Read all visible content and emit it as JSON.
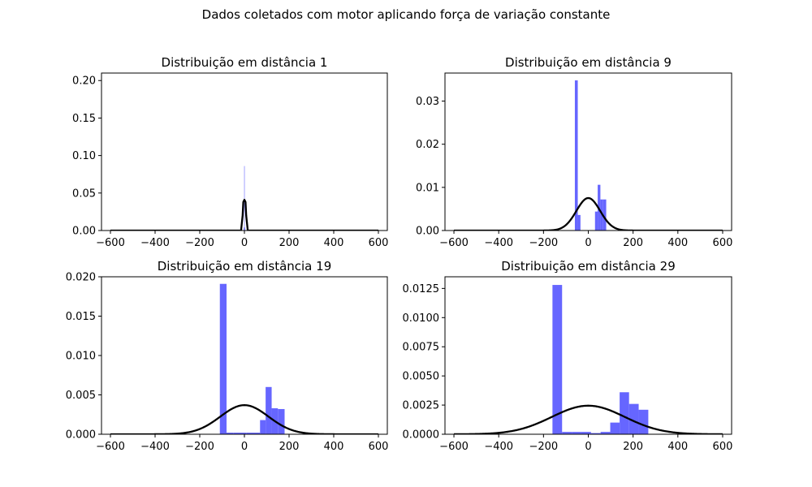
{
  "figure": {
    "suptitle": "Dados coletados com motor aplicando força de variação constante",
    "bar_color": "#6666ff",
    "curve_color": "#000000"
  },
  "chart_data": [
    {
      "type": "histogram",
      "title": "Distribuição em distância 1",
      "xlabel": "",
      "ylabel": "",
      "xlim": [
        -640,
        640
      ],
      "ylim": [
        0,
        0.21
      ],
      "xticks": [
        -600,
        -400,
        -200,
        0,
        200,
        400,
        600
      ],
      "xtick_labels": [
        "−600",
        "−400",
        "−200",
        "0",
        "200",
        "400",
        "600"
      ],
      "yticks": [
        0,
        0.05,
        0.1,
        0.15,
        0.2
      ],
      "ytick_labels": [
        "0.00",
        "0.05",
        "0.10",
        "0.15",
        "0.20"
      ],
      "bins": [
        {
          "x0": -3,
          "x1": -1,
          "y": 0.004
        },
        {
          "x0": -1,
          "x1": 1,
          "y": 0.086
        },
        {
          "x0": 1,
          "x1": 3,
          "y": 0.004
        }
      ],
      "normal_curve": {
        "x_min": -600,
        "x_max": 600,
        "mu": 0,
        "sigma": 10,
        "explicit_points": [
          [
            -600,
            0
          ],
          [
            -15,
            0
          ],
          [
            -8,
            0.02
          ],
          [
            -5,
            0.038
          ],
          [
            0,
            0.041
          ],
          [
            5,
            0.038
          ],
          [
            8,
            0.02
          ],
          [
            15,
            0
          ],
          [
            600,
            0
          ]
        ]
      },
      "grid": false
    },
    {
      "type": "histogram",
      "title": "Distribuição em distância 9",
      "xlabel": "",
      "ylabel": "",
      "xlim": [
        -640,
        640
      ],
      "ylim": [
        0,
        0.0365
      ],
      "xticks": [
        -600,
        -400,
        -200,
        0,
        200,
        400,
        600
      ],
      "xtick_labels": [
        "−600",
        "−400",
        "−200",
        "0",
        "200",
        "400",
        "600"
      ],
      "yticks": [
        0,
        0.01,
        0.02,
        0.03
      ],
      "ytick_labels": [
        "0.00",
        "0.01",
        "0.02",
        "0.03"
      ],
      "bins": [
        {
          "x0": -60,
          "x1": -47,
          "y": 0.0348
        },
        {
          "x0": -47,
          "x1": -35,
          "y": 0.0036
        },
        {
          "x0": 30,
          "x1": 42,
          "y": 0.0044
        },
        {
          "x0": 42,
          "x1": 54,
          "y": 0.0106
        },
        {
          "x0": 54,
          "x1": 66,
          "y": 0.0072
        },
        {
          "x0": 66,
          "x1": 80,
          "y": 0.0072
        }
      ],
      "normal_curve": {
        "x_min": -600,
        "x_max": 600,
        "mu": 0,
        "sigma": 53
      },
      "grid": false
    },
    {
      "type": "histogram",
      "title": "Distribuição em distância 19",
      "xlabel": "",
      "ylabel": "",
      "xlim": [
        -640,
        640
      ],
      "ylim": [
        0,
        0.02
      ],
      "xticks": [
        -600,
        -400,
        -200,
        0,
        200,
        400,
        600
      ],
      "xtick_labels": [
        "−600",
        "−400",
        "−200",
        "0",
        "200",
        "400",
        "600"
      ],
      "yticks": [
        0,
        0.005,
        0.01,
        0.015,
        0.02
      ],
      "ytick_labels": [
        "0.000",
        "0.005",
        "0.010",
        "0.015",
        "0.020"
      ],
      "bins": [
        {
          "x0": -110,
          "x1": -80,
          "y": 0.0191
        },
        {
          "x0": -80,
          "x1": -50,
          "y": 0.0002
        },
        {
          "x0": -50,
          "x1": -20,
          "y": 0.0002
        },
        {
          "x0": -20,
          "x1": 10,
          "y": 0.0002
        },
        {
          "x0": 10,
          "x1": 40,
          "y": 0.0002
        },
        {
          "x0": 40,
          "x1": 70,
          "y": 0.0002
        },
        {
          "x0": 70,
          "x1": 95,
          "y": 0.0018
        },
        {
          "x0": 95,
          "x1": 122,
          "y": 0.006
        },
        {
          "x0": 122,
          "x1": 150,
          "y": 0.0033
        },
        {
          "x0": 150,
          "x1": 180,
          "y": 0.0032
        }
      ],
      "normal_curve": {
        "x_min": -600,
        "x_max": 600,
        "mu": 0,
        "sigma": 108
      },
      "grid": false
    },
    {
      "type": "histogram",
      "title": "Distribuição em distância 29",
      "xlabel": "",
      "ylabel": "",
      "xlim": [
        -640,
        640
      ],
      "ylim": [
        0,
        0.0135
      ],
      "xticks": [
        -600,
        -400,
        -200,
        0,
        200,
        400,
        600
      ],
      "xtick_labels": [
        "−600",
        "−400",
        "−200",
        "0",
        "200",
        "400",
        "600"
      ],
      "yticks": [
        0,
        0.0025,
        0.005,
        0.0075,
        0.01,
        0.0125
      ],
      "ytick_labels": [
        "0.0000",
        "0.0025",
        "0.0050",
        "0.0075",
        "0.0100",
        "0.0125"
      ],
      "bins": [
        {
          "x0": -160,
          "x1": -117,
          "y": 0.0128
        },
        {
          "x0": -117,
          "x1": -74,
          "y": 0.0002
        },
        {
          "x0": -74,
          "x1": -31,
          "y": 0.0002
        },
        {
          "x0": -31,
          "x1": 12,
          "y": 0.0002
        },
        {
          "x0": 12,
          "x1": 55,
          "y": 0.0001
        },
        {
          "x0": 55,
          "x1": 98,
          "y": 0.0002
        },
        {
          "x0": 98,
          "x1": 140,
          "y": 0.001
        },
        {
          "x0": 140,
          "x1": 182,
          "y": 0.0036
        },
        {
          "x0": 182,
          "x1": 225,
          "y": 0.0026
        },
        {
          "x0": 225,
          "x1": 268,
          "y": 0.0021
        }
      ],
      "normal_curve": {
        "x_min": -600,
        "x_max": 600,
        "mu": 0,
        "sigma": 163
      },
      "grid": false
    }
  ]
}
